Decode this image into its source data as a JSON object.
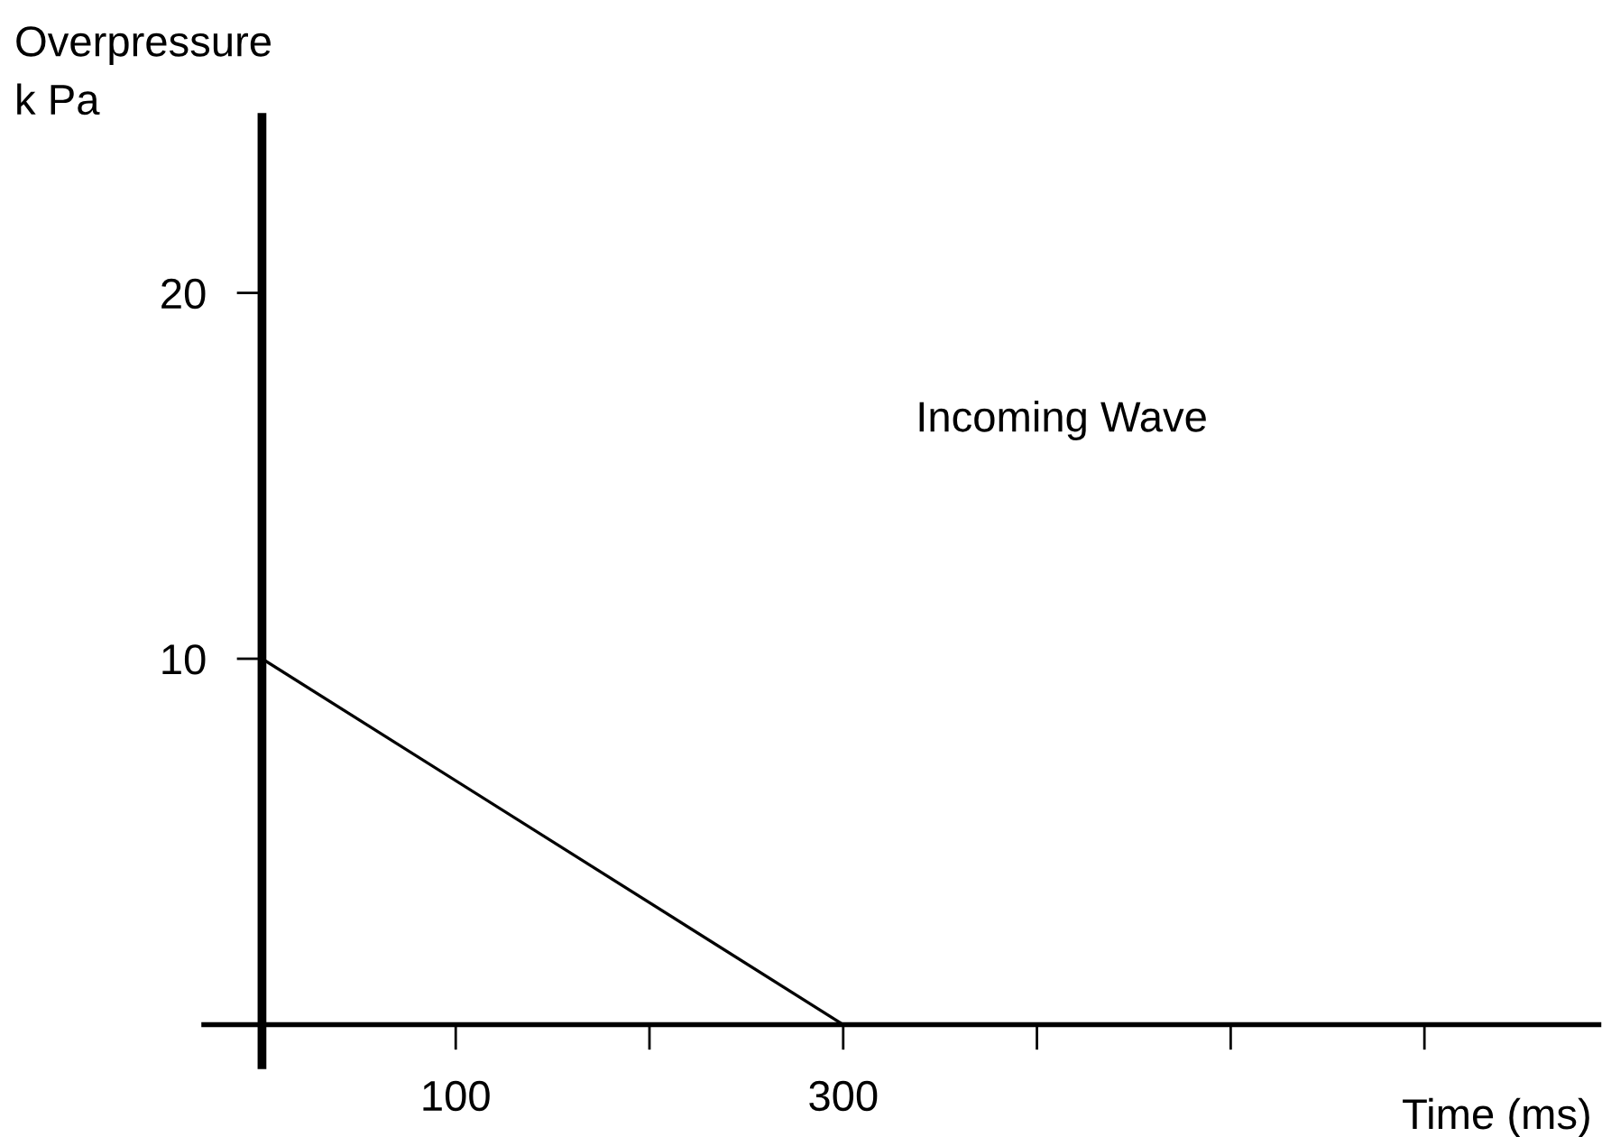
{
  "chart_data": {
    "type": "line",
    "ylabel": "Overpressure\nk Pa",
    "xlabel": "Time (ms)",
    "annotations": [
      "Incoming Wave"
    ],
    "x": [
      0,
      300
    ],
    "series": [
      {
        "color": "#000000",
        "values": [
          10,
          0
        ]
      }
    ],
    "xlim": [
      -30,
      690
    ],
    "ylim": [
      -1.1,
      24.8
    ],
    "xticks": [
      {
        "value": 100,
        "label": "100"
      },
      {
        "value": 200,
        "label": null
      },
      {
        "value": 300,
        "label": "300"
      },
      {
        "value": 400,
        "label": null
      },
      {
        "value": 500,
        "label": null
      },
      {
        "value": 600,
        "label": null
      }
    ],
    "yticks": [
      10,
      20
    ],
    "grid": false,
    "marker": "none",
    "line_style": "solid"
  }
}
